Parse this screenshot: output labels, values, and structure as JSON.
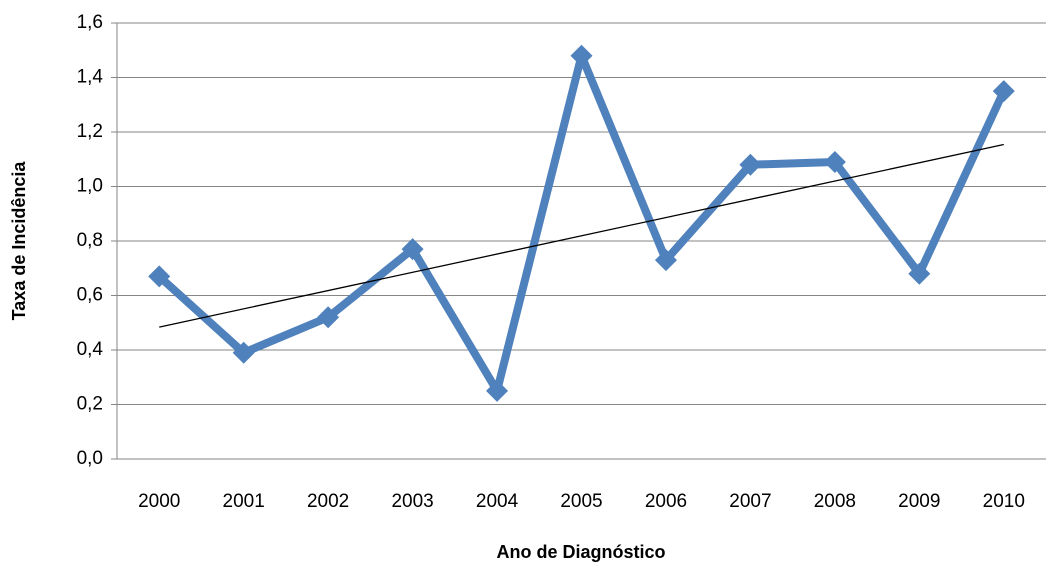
{
  "chart_data": {
    "type": "line",
    "x_label": "Ano de Diagnóstico",
    "y_label": "Taxa de Incidência",
    "categories": [
      "2000",
      "2001",
      "2002",
      "2003",
      "2004",
      "2005",
      "2006",
      "2007",
      "2008",
      "2009",
      "2010"
    ],
    "series": [
      {
        "color": "#4f81bd",
        "values": [
          0.67,
          0.39,
          0.52,
          0.77,
          0.25,
          1.48,
          0.73,
          1.08,
          1.09,
          0.68,
          1.35
        ]
      }
    ],
    "trendline": "linear",
    "trendline_color": "#000000",
    "ylim": [
      0,
      1.6
    ],
    "yticks": [
      {
        "value": 0,
        "label": "0,0"
      },
      {
        "value": 0.2,
        "label": "0,2"
      },
      {
        "value": 0.4,
        "label": "0,4"
      },
      {
        "value": 0.6,
        "label": "0,6"
      },
      {
        "value": 0.8,
        "label": "0,8"
      },
      {
        "value": 1.0,
        "label": "1,0"
      },
      {
        "value": 1.2,
        "label": "1,2"
      },
      {
        "value": 1.4,
        "label": "1,4"
      },
      {
        "value": 1.6,
        "label": "1,6"
      }
    ],
    "grid": true,
    "marker": "diamond"
  }
}
